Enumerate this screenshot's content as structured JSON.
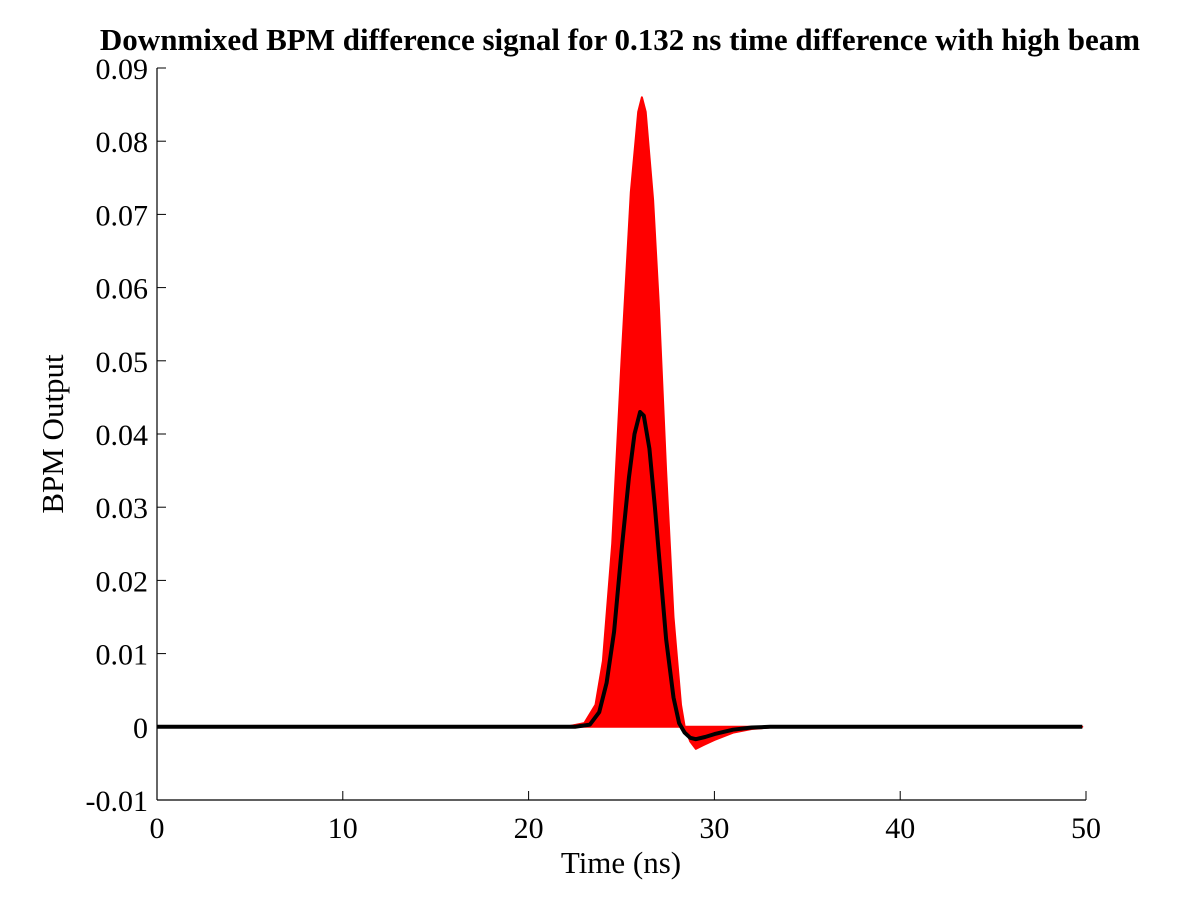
{
  "chart_data": {
    "type": "area",
    "title": "Downmixed BPM difference signal for 0.132 ns time difference with high beam",
    "xlabel": "Time (ns)",
    "ylabel": "BPM Output",
    "xlim": [
      0,
      50
    ],
    "ylim": [
      -0.01,
      0.09
    ],
    "xticks": [
      0,
      10,
      20,
      30,
      40,
      50
    ],
    "xtick_labels": [
      "0",
      "10",
      "20",
      "30",
      "40",
      "50"
    ],
    "yticks": [
      -0.01,
      0,
      0.01,
      0.02,
      0.03,
      0.04,
      0.05,
      0.06,
      0.07,
      0.08,
      0.09
    ],
    "ytick_labels": [
      "-0.01",
      "0",
      "0.01",
      "0.02",
      "0.03",
      "0.04",
      "0.05",
      "0.06",
      "0.07",
      "0.08",
      "0.09"
    ],
    "grid": false,
    "data_x_range": [
      0,
      49.8
    ],
    "series": [
      {
        "style": "filled",
        "color": "#ff0000",
        "x": [
          0,
          22.0,
          23.0,
          23.6,
          24.0,
          24.5,
          25.0,
          25.5,
          25.9,
          26.1,
          26.3,
          26.7,
          27.0,
          27.4,
          27.8,
          28.2,
          28.4,
          28.7,
          29.0,
          29.4,
          30.0,
          31.0,
          32.0,
          33.0,
          34.0,
          49.8
        ],
        "values": [
          0,
          0.0,
          0.0005,
          0.003,
          0.009,
          0.025,
          0.05,
          0.073,
          0.084,
          0.086,
          0.084,
          0.072,
          0.058,
          0.035,
          0.015,
          0.003,
          0.0,
          -0.002,
          -0.003,
          -0.0025,
          -0.0018,
          -0.0008,
          -0.0003,
          -0.0001,
          0.0,
          0.0
        ]
      },
      {
        "style": "line",
        "color": "#000000",
        "x": [
          0,
          22.5,
          23.3,
          23.8,
          24.2,
          24.6,
          25.0,
          25.4,
          25.7,
          26.0,
          26.2,
          26.5,
          26.8,
          27.1,
          27.4,
          27.8,
          28.1,
          28.4,
          28.7,
          29.0,
          29.5,
          30.0,
          31.0,
          32.0,
          33.0,
          49.8
        ],
        "values": [
          0,
          0.0,
          0.0003,
          0.002,
          0.006,
          0.013,
          0.024,
          0.034,
          0.04,
          0.043,
          0.0425,
          0.038,
          0.03,
          0.021,
          0.012,
          0.004,
          0.0005,
          -0.0008,
          -0.0015,
          -0.0017,
          -0.0014,
          -0.001,
          -0.0004,
          -0.0001,
          0.0,
          0.0
        ]
      }
    ]
  }
}
